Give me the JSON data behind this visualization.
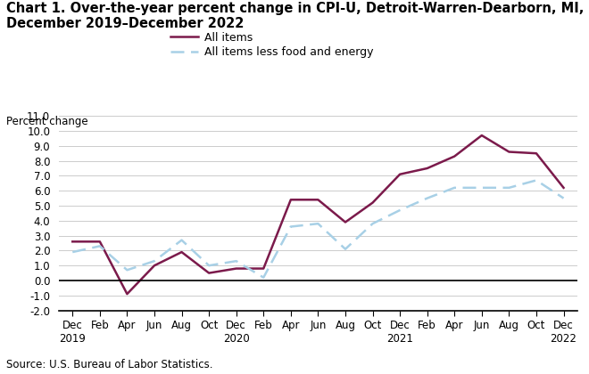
{
  "title_line1": "Chart 1. Over-the-year percent change in CPI-U, Detroit-Warren-Dearborn, MI,",
  "title_line2": "December 2019–December 2022",
  "ylabel": "Percent change",
  "source": "Source: U.S. Bureau of Labor Statistics.",
  "ylim": [
    -2.0,
    11.0
  ],
  "yticks": [
    -2.0,
    -1.0,
    0.0,
    1.0,
    2.0,
    3.0,
    4.0,
    5.0,
    6.0,
    7.0,
    8.0,
    9.0,
    10.0,
    11.0
  ],
  "x_labels": [
    "Dec\n2019",
    "Feb",
    "Apr",
    "Jun",
    "Aug",
    "Oct",
    "Dec\n2020",
    "Feb",
    "Apr",
    "Jun",
    "Aug",
    "Oct",
    "Dec\n2021",
    "Feb",
    "Apr",
    "Jun",
    "Aug",
    "Oct",
    "Dec\n2022"
  ],
  "all_items": [
    2.6,
    2.6,
    -0.9,
    1.0,
    1.9,
    0.5,
    0.8,
    0.8,
    5.4,
    5.4,
    3.9,
    5.2,
    7.1,
    7.5,
    8.3,
    9.7,
    8.6,
    8.5,
    6.2
  ],
  "core_items": [
    1.9,
    2.3,
    0.7,
    1.3,
    2.7,
    1.0,
    1.3,
    0.2,
    3.6,
    3.8,
    2.1,
    3.8,
    4.7,
    5.5,
    6.2,
    6.2,
    6.2,
    6.7,
    5.5
  ],
  "all_items_color": "#7b1a4b",
  "core_items_color": "#a8d0e6",
  "all_items_label": "All items",
  "core_items_label": "All items less food and energy",
  "background_color": "#ffffff",
  "grid_color": "#cccccc",
  "title_fontsize": 10.5,
  "legend_fontsize": 9.0,
  "ylabel_fontsize": 8.5,
  "tick_fontsize": 8.5,
  "source_fontsize": 8.5
}
